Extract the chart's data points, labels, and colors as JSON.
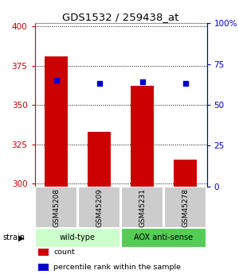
{
  "title": "GDS1532 / 259438_at",
  "samples": [
    "GSM45208",
    "GSM45209",
    "GSM45231",
    "GSM45278"
  ],
  "counts": [
    381,
    333,
    362,
    315
  ],
  "percentiles": [
    65,
    63,
    64,
    63
  ],
  "ylim_left": [
    298,
    402
  ],
  "ylim_right": [
    0,
    100
  ],
  "yticks_left": [
    300,
    325,
    350,
    375,
    400
  ],
  "yticks_right": [
    0,
    25,
    50,
    75,
    100
  ],
  "bar_color": "#cc0000",
  "dot_color": "#0000cc",
  "groups": [
    {
      "label": "wild-type",
      "indices": [
        0,
        1
      ],
      "color": "#ccffcc"
    },
    {
      "label": "AOX anti-sense",
      "indices": [
        2,
        3
      ],
      "color": "#55cc55"
    }
  ],
  "sample_box_color": "#cccccc",
  "legend_items": [
    {
      "label": "count",
      "color": "#cc0000"
    },
    {
      "label": "percentile rank within the sample",
      "color": "#0000cc"
    }
  ],
  "left_tick_color": "#cc0000",
  "right_tick_color": "#0000cc",
  "bar_width": 0.55,
  "background_color": "#ffffff"
}
